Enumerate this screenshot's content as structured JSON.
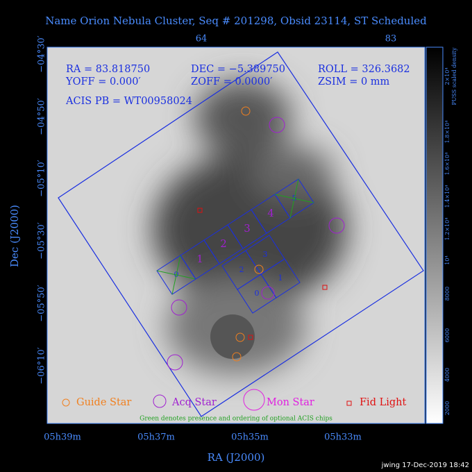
{
  "header": {
    "title": "Name Orion Nebula Cluster, Seq # 201298, Obsid 23114, ST Scheduled"
  },
  "info": {
    "line1": [
      "RA = 83.818750",
      "DEC = −5.389750",
      "ROLL = 326.3682"
    ],
    "line2": [
      "YOFF = 0.000′",
      "ZOFF = 0.0000′",
      "ZSIM = 0 mm"
    ],
    "line3": "ACIS PB = WT00958024"
  },
  "axes": {
    "top_ticks": [
      "64",
      "83"
    ],
    "left_ticks": [
      "−04°30′",
      "−04°50′",
      "−05°10′",
      "−05°30′",
      "−05°50′",
      "−06°10′"
    ],
    "bottom_ticks": [
      "05h39m",
      "05h37m",
      "05h35m",
      "05h33m"
    ],
    "xlabel": "RA (J2000)",
    "ylabel": "Dec (J2000)"
  },
  "colorbar": {
    "label": "PUSS scaled density",
    "ticks": [
      "2000",
      "4000",
      "6000",
      "8000",
      "10⁴",
      "1.2×10⁴",
      "1.4×10⁴",
      "1.6×10⁴",
      "1.8×10⁴",
      "2×10⁴"
    ]
  },
  "chips": {
    "s_array": [
      "0",
      "1",
      "2",
      "3",
      "4",
      "5"
    ],
    "i_array": [
      "0",
      "1",
      "2",
      "3"
    ]
  },
  "legend": {
    "guide": "Guide Star",
    "acq": "Acq Star",
    "mon": "Mon Star",
    "fid": "Fid Light",
    "note": "Green denotes presence and ordering of optional ACIS chips"
  },
  "footer": "jwing 17-Dec-2019 18:42"
}
